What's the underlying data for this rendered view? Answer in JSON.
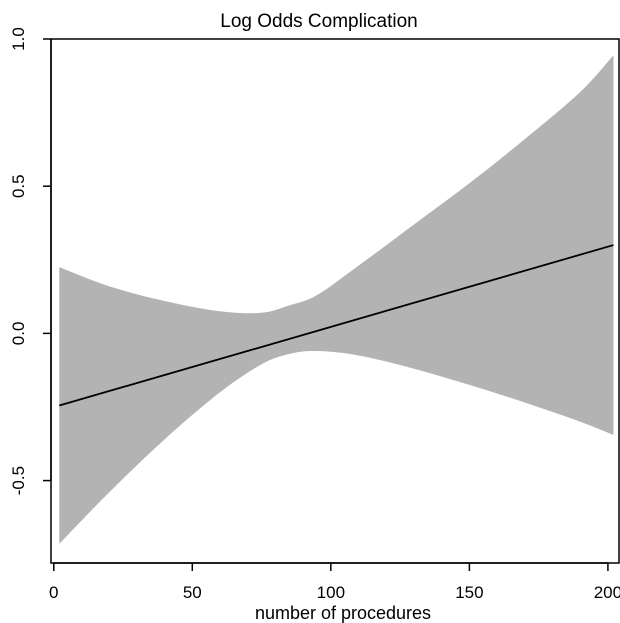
{
  "chart_data": {
    "type": "line",
    "title": "Log Odds Complication",
    "xlabel": "number of procedures",
    "ylabel": "",
    "xlim": [
      -1,
      204
    ],
    "ylim": [
      -0.78,
      1.0
    ],
    "x_ticks": [
      0,
      50,
      100,
      150,
      200
    ],
    "x_tick_labels": [
      "0",
      "50",
      "100",
      "150",
      "200"
    ],
    "y_ticks": [
      -0.5,
      0.0,
      0.5,
      1.0
    ],
    "y_tick_labels": [
      "-0.5",
      "0.0",
      "0.5",
      "1.0"
    ],
    "grid": false,
    "series": [
      {
        "kind": "line",
        "color": "#000000",
        "x": [
          2,
          202
        ],
        "y": [
          -0.245,
          0.3
        ]
      },
      {
        "kind": "confidence-band",
        "color": "#b3b3b3",
        "x": [
          2,
          20,
          40,
          60,
          75,
          85,
          95,
          110,
          130,
          150,
          170,
          190,
          202
        ],
        "upper": [
          0.225,
          0.16,
          0.11,
          0.075,
          0.07,
          0.095,
          0.13,
          0.23,
          0.37,
          0.51,
          0.66,
          0.82,
          0.945
        ],
        "lower": [
          -0.715,
          -0.54,
          -0.36,
          -0.2,
          -0.105,
          -0.07,
          -0.06,
          -0.075,
          -0.12,
          -0.175,
          -0.235,
          -0.3,
          -0.345
        ]
      }
    ]
  }
}
